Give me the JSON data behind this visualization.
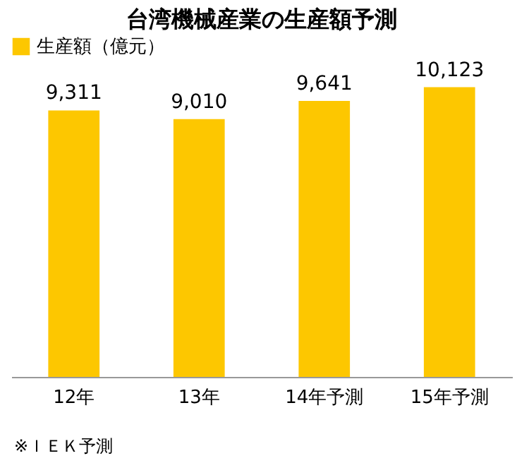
{
  "chart_data": {
    "type": "bar",
    "title": "台湾機械産業の生産額予測",
    "categories": [
      "12年",
      "13年",
      "14年予測",
      "15年予測"
    ],
    "series": [
      {
        "name": "生産額（億元）",
        "color": "#fdc700",
        "values": [
          9311,
          9010,
          9641,
          10123
        ],
        "value_labels": [
          "9,311",
          "9,010",
          "9,641",
          "10,123"
        ]
      }
    ],
    "legend": "top left",
    "tick_labels": "x",
    "annotations": [
      "※ＩＥＫ予測"
    ]
  }
}
